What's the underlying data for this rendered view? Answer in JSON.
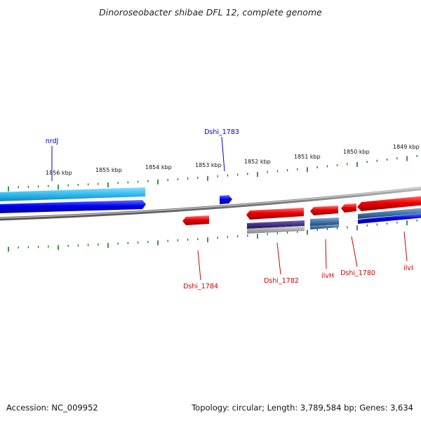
{
  "title": "Dinoroseobacter shibae DFL 12, complete genome",
  "footer": {
    "accession": "Accession: NC_009952",
    "topology": "Topology: circular; Length: 3,789,584 bp; Genes: 3,634"
  },
  "scale_labels": [
    "1856 kbp",
    "1855 kbp",
    "1854 kbp",
    "1853 kbp",
    "1852 kbp",
    "1851 kbp",
    "1850 kbp",
    "1849 kbp"
  ],
  "genes": [
    {
      "name": "nrdJ",
      "strand": "+",
      "color": "#0000cc"
    },
    {
      "name": "Dshi_1783",
      "strand": "+",
      "color": "#0000cc"
    },
    {
      "name": "Dshi_1784",
      "strand": "-",
      "color": "#cc0000"
    },
    {
      "name": "Dshi_1782",
      "strand": "-",
      "color": "#cc0000"
    },
    {
      "name": "ilvH",
      "strand": "-",
      "color": "#cc0000"
    },
    {
      "name": "Dshi_1780",
      "strand": "-",
      "color": "#cc0000"
    },
    {
      "name": "ilvI",
      "strand": "-",
      "color": "#cc0000"
    }
  ],
  "colors": {
    "forward_gene": "#0000ee",
    "reverse_gene": "#ee0000",
    "cds_light": "#33bbee",
    "cds_steel": "#4477aa",
    "cds_purple": "#443388",
    "backbone": "#888888",
    "ticks": "#117711"
  }
}
